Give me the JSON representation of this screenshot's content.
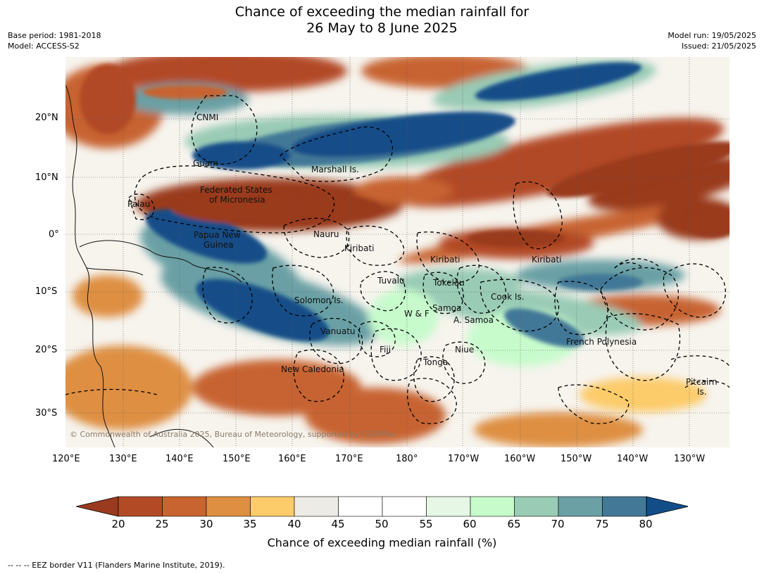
{
  "title_line1": "Chance of exceeding the median rainfall for",
  "title_line2": "26 May to 8 June 2025",
  "meta_left": [
    "Base period: 1981-2018",
    "Model: ACCESS-S2"
  ],
  "meta_right": [
    "Model run: 19/05/2025",
    "Issued: 21/05/2025"
  ],
  "lon_ticks": [
    "120°E",
    "130°E",
    "140°E",
    "150°E",
    "160°E",
    "170°E",
    "180°",
    "170°W",
    "160°W",
    "150°W",
    "140°W",
    "130°W"
  ],
  "lat_ticks": [
    "20°N",
    "10°N",
    "0°",
    "10°S",
    "20°S",
    "30°S"
  ],
  "places": [
    "CNMI",
    "Guam",
    "Marshall Is.",
    "Federated States",
    "of Micronesia",
    "Palau",
    "Nauru",
    "Papua New",
    "Guinea",
    "Kiribati",
    "Kiribati",
    "Kiribati",
    "Tuvalu",
    "Tokelau",
    "Cook Is.",
    "Solomon Is.",
    "W & F",
    "Samoa",
    "A. Samoa",
    "Vanuatu",
    "Fiji",
    "Niue",
    "Tonga",
    "French Polynesia",
    "New Caledonia",
    "Pitcairn",
    "Is."
  ],
  "copyright": "© Commonwealth of Australia 2025, Bureau of Meteorology, supported by COSPPac",
  "colorbar": {
    "ticks": [
      "20",
      "25",
      "30",
      "35",
      "40",
      "45",
      "50",
      "55",
      "60",
      "65",
      "70",
      "75",
      "80"
    ],
    "colors": [
      "#9a3a1e",
      "#b24a26",
      "#c76430",
      "#de8f42",
      "#fccb6a",
      "#edebe6",
      "#ffffff",
      "#ffffff",
      "#e6f7e6",
      "#c7fbcc",
      "#99cbb5",
      "#6ba0a5",
      "#437897",
      "#124d88"
    ],
    "label": "Chance of exceeding median rainfall (%)"
  },
  "footnote": "-- -- -- EEZ border V11 (Flanders Marine Institute, 2019)."
}
